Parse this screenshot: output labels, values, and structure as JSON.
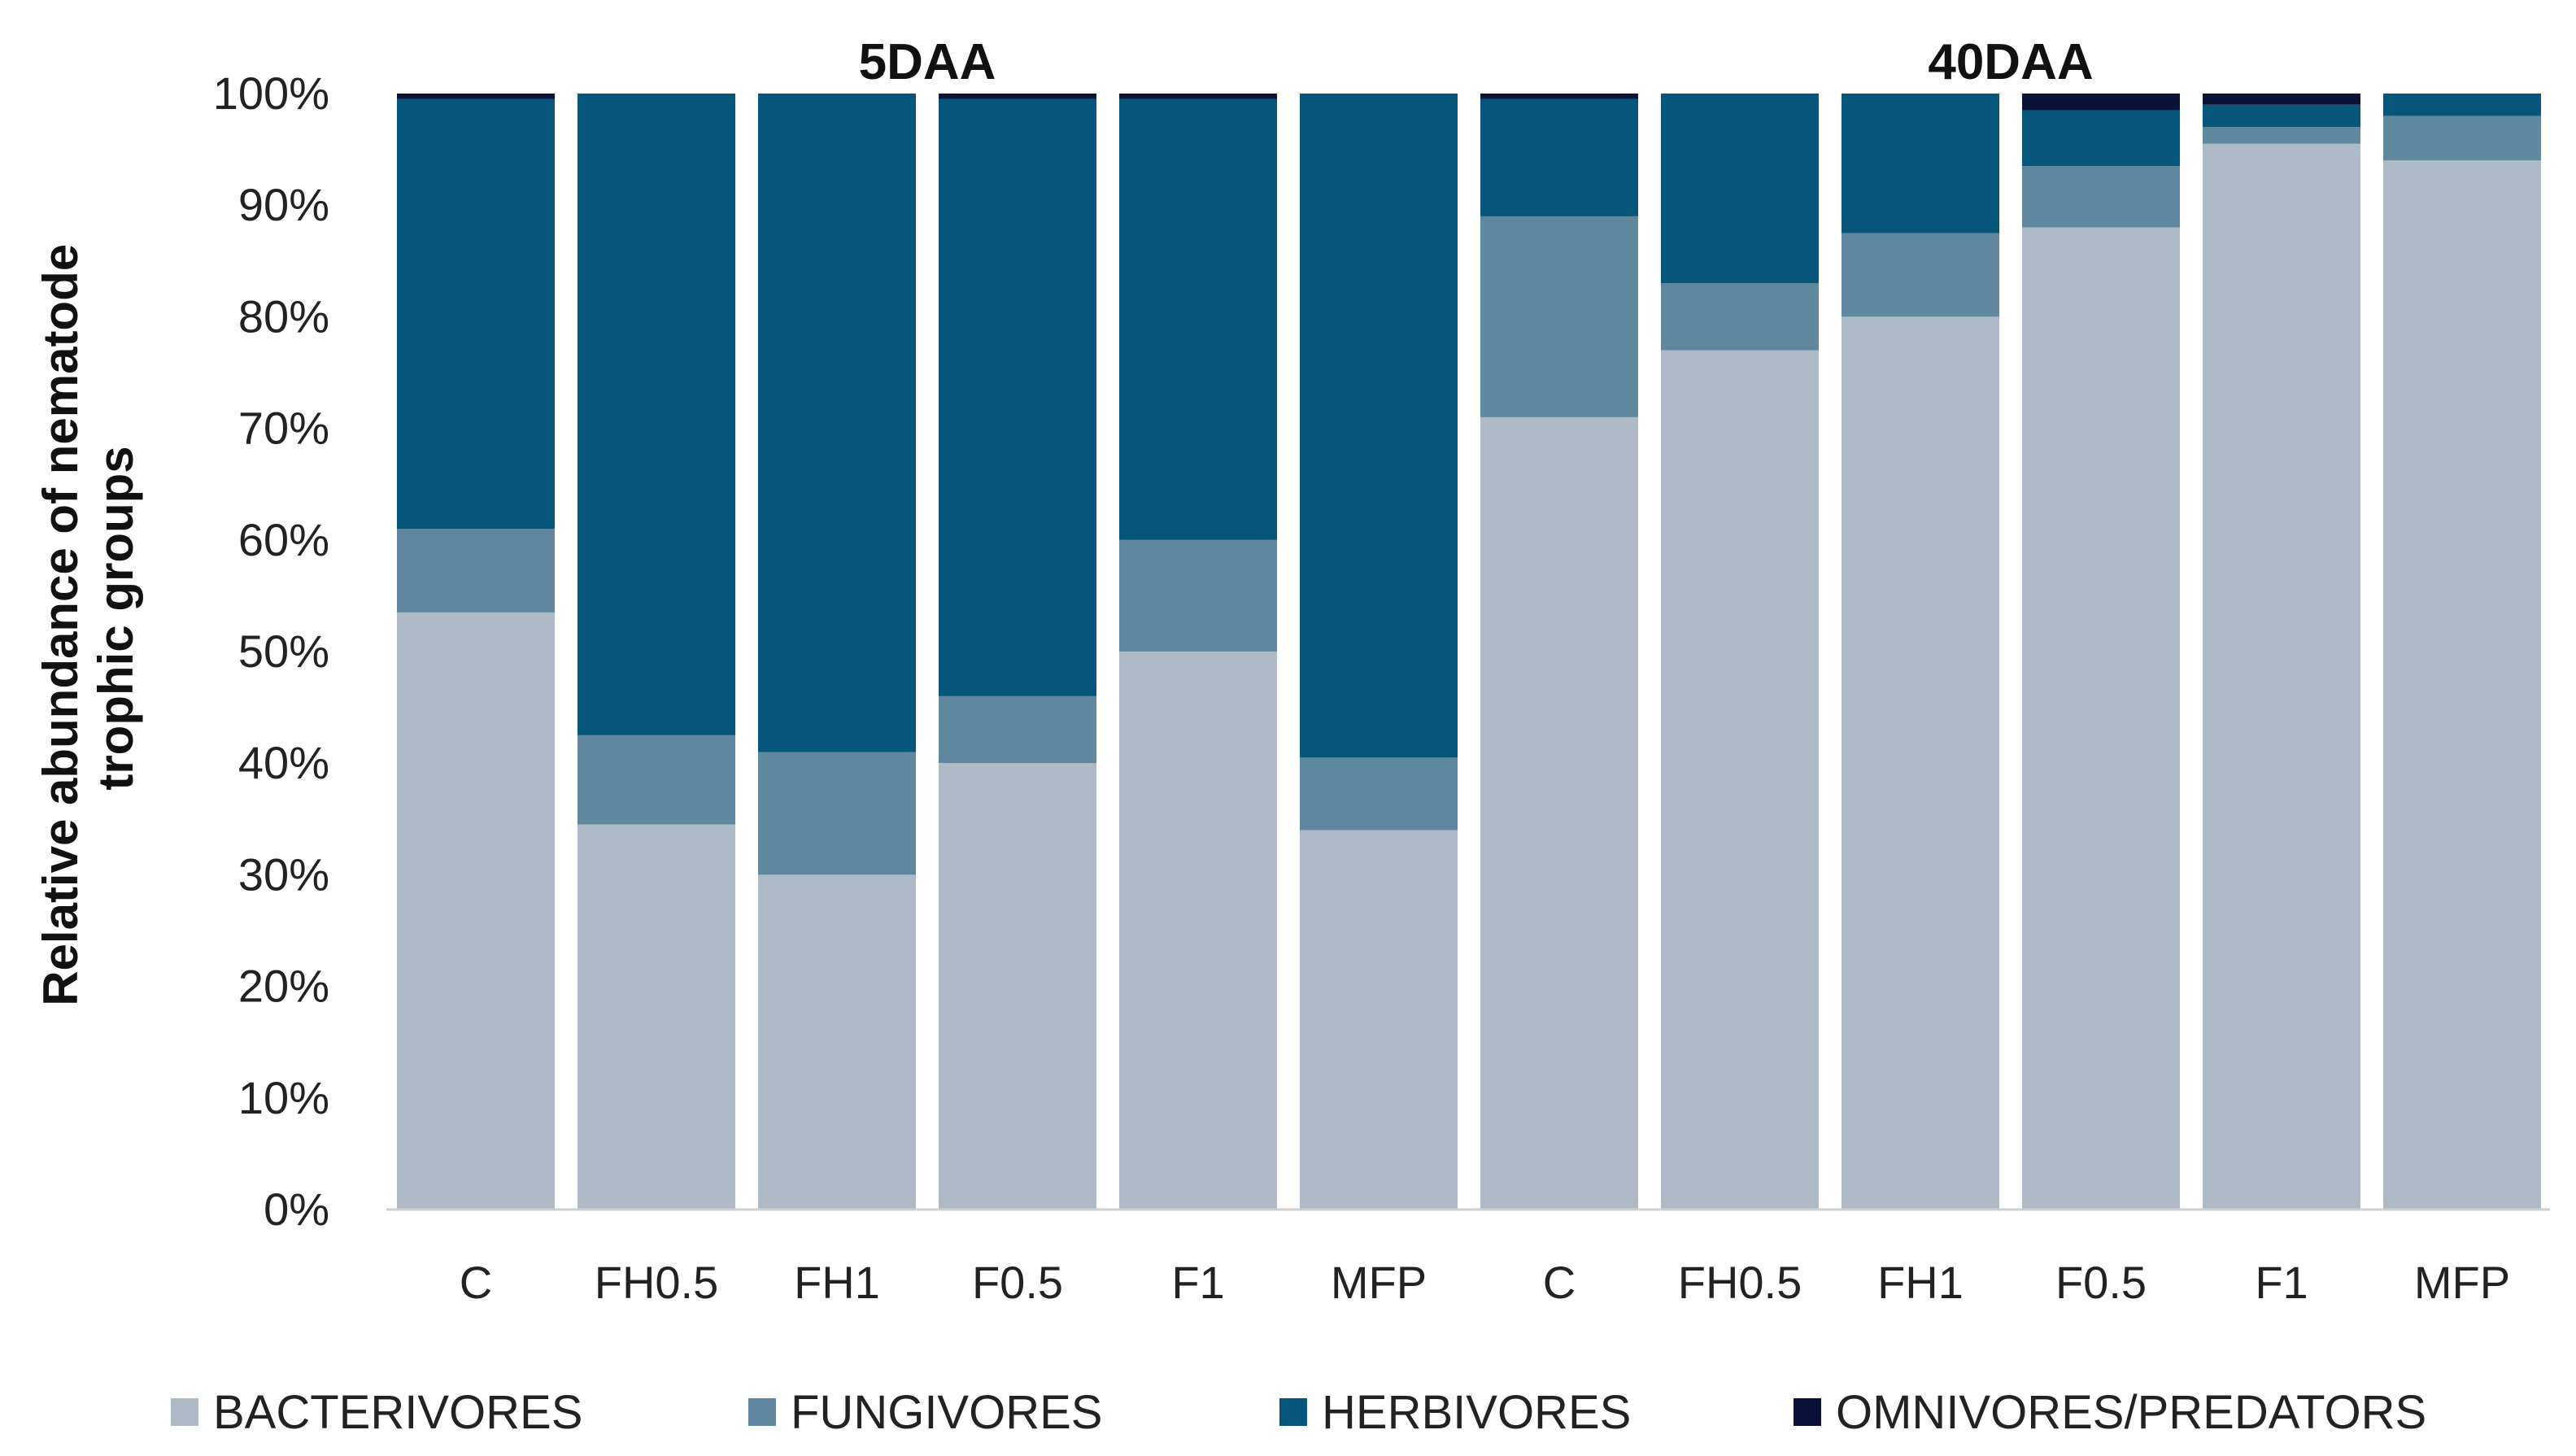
{
  "chart_data": {
    "type": "bar",
    "stacked": true,
    "ylabel_line1": "Relative abundance of nematode",
    "ylabel_line2": "trophic groups",
    "ylim": [
      0,
      100
    ],
    "yticks": [
      "0%",
      "10%",
      "20%",
      "30%",
      "40%",
      "50%",
      "60%",
      "70%",
      "80%",
      "90%",
      "100%"
    ],
    "groups": [
      {
        "label": "5DAA",
        "categories": [
          "C",
          "FH0.5",
          "FH1",
          "F0.5",
          "F1",
          "MFP"
        ]
      },
      {
        "label": "40DAA",
        "categories": [
          "C",
          "FH0.5",
          "FH1",
          "F0.5",
          "F1",
          "MFP"
        ]
      }
    ],
    "series": [
      {
        "name": "BACTERIVORES",
        "color": "#aebac5",
        "values": [
          53.5,
          34.5,
          30,
          40,
          50,
          34,
          71,
          77,
          80,
          88,
          95.5,
          94
        ]
      },
      {
        "name": "FUNGIVORES",
        "color": "#5f879e",
        "values": [
          7.5,
          8,
          11,
          6,
          10,
          6.5,
          18,
          6,
          7.5,
          5.5,
          1.5,
          4
        ]
      },
      {
        "name": "HERBIVORES",
        "color": "#05567a",
        "values": [
          38.5,
          57.5,
          59,
          53.5,
          39.5,
          59.5,
          10.5,
          17,
          12.5,
          5,
          2,
          2
        ]
      },
      {
        "name": "OMNIVORES/PREDATORS",
        "color": "#0b1238",
        "values": [
          0.5,
          0,
          0,
          0.5,
          0.5,
          0,
          0.5,
          0,
          0,
          1.5,
          1,
          0
        ]
      }
    ]
  }
}
